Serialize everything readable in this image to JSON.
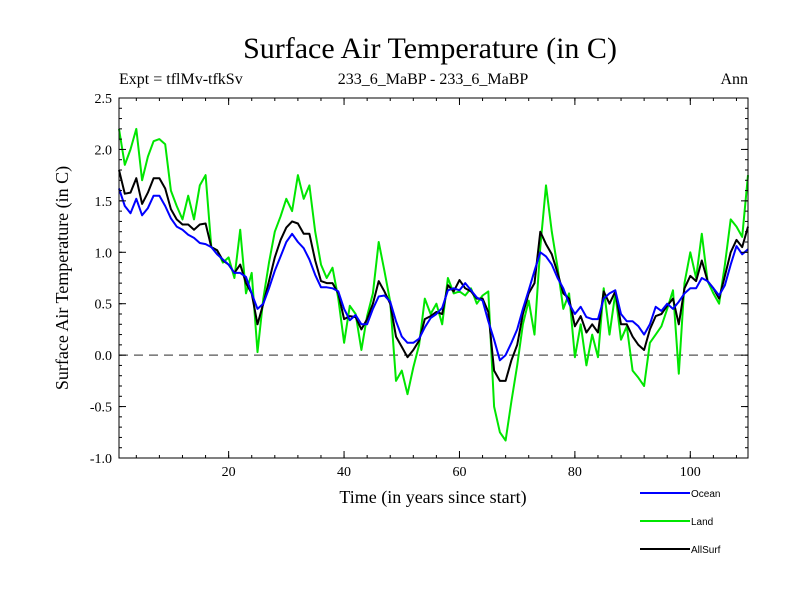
{
  "chart_data": {
    "type": "line",
    "title": "Surface Air Temperature (in C)",
    "subtitle_left": "Expt = tflMv-tfkSv",
    "subtitle_center": "233_6_MaBP - 233_6_MaBP",
    "subtitle_right": "Ann",
    "xlabel": "Time (in years since start)",
    "ylabel": "Surface Air Temperature (in C)",
    "xlim": [
      1,
      110
    ],
    "ylim": [
      -1.0,
      2.5
    ],
    "xticks": [
      20,
      40,
      60,
      80,
      100
    ],
    "xtick_labels": [
      "20",
      "40",
      "60",
      "80",
      "100"
    ],
    "yticks": [
      -1.0,
      -0.5,
      0.0,
      0.5,
      1.0,
      1.5,
      2.0,
      2.5
    ],
    "ytick_labels": [
      "-1.0",
      "-0.5",
      "0.0",
      "0.5",
      "1.0",
      "1.5",
      "2.0",
      "2.5"
    ],
    "reference_line": {
      "y": 0.0,
      "style": "dashed"
    },
    "x": [
      1,
      2,
      3,
      4,
      5,
      6,
      7,
      8,
      9,
      10,
      11,
      12,
      13,
      14,
      15,
      16,
      17,
      18,
      19,
      20,
      21,
      22,
      23,
      24,
      25,
      26,
      27,
      28,
      29,
      30,
      31,
      32,
      33,
      34,
      35,
      36,
      37,
      38,
      39,
      40,
      41,
      42,
      43,
      44,
      45,
      46,
      47,
      48,
      49,
      50,
      51,
      52,
      53,
      54,
      55,
      56,
      57,
      58,
      59,
      60,
      61,
      62,
      63,
      64,
      65,
      66,
      67,
      68,
      69,
      70,
      71,
      72,
      73,
      74,
      75,
      76,
      77,
      78,
      79,
      80,
      81,
      82,
      83,
      84,
      85,
      86,
      87,
      88,
      89,
      90,
      91,
      92,
      93,
      94,
      95,
      96,
      97,
      98,
      99,
      100,
      101,
      102,
      103,
      104,
      105,
      106,
      107,
      108,
      109,
      110
    ],
    "series": [
      {
        "name": "Ocean",
        "color": "#0000ff",
        "values": [
          1.62,
          1.45,
          1.38,
          1.52,
          1.36,
          1.43,
          1.55,
          1.55,
          1.45,
          1.33,
          1.25,
          1.22,
          1.17,
          1.14,
          1.09,
          1.08,
          1.05,
          0.98,
          0.93,
          0.88,
          0.8,
          0.8,
          0.76,
          0.6,
          0.45,
          0.5,
          0.65,
          0.82,
          0.96,
          1.1,
          1.18,
          1.1,
          1.04,
          0.93,
          0.78,
          0.66,
          0.66,
          0.65,
          0.62,
          0.45,
          0.34,
          0.39,
          0.3,
          0.3,
          0.45,
          0.57,
          0.58,
          0.52,
          0.33,
          0.18,
          0.12,
          0.12,
          0.16,
          0.27,
          0.36,
          0.4,
          0.46,
          0.63,
          0.65,
          0.63,
          0.7,
          0.63,
          0.56,
          0.53,
          0.33,
          0.15,
          -0.05,
          0.0,
          0.12,
          0.25,
          0.45,
          0.63,
          0.82,
          1.0,
          0.96,
          0.88,
          0.75,
          0.65,
          0.5,
          0.4,
          0.47,
          0.37,
          0.35,
          0.35,
          0.55,
          0.6,
          0.63,
          0.4,
          0.33,
          0.33,
          0.28,
          0.2,
          0.3,
          0.47,
          0.43,
          0.5,
          0.45,
          0.52,
          0.6,
          0.65,
          0.65,
          0.75,
          0.72,
          0.65,
          0.58,
          0.68,
          0.88,
          1.06,
          0.98,
          1.03
        ]
      },
      {
        "name": "Land",
        "color": "#00e600",
        "values": [
          2.2,
          1.85,
          2.0,
          2.2,
          1.7,
          1.93,
          2.08,
          2.1,
          2.05,
          1.6,
          1.45,
          1.32,
          1.55,
          1.32,
          1.65,
          1.75,
          1.05,
          1.02,
          0.9,
          0.95,
          0.75,
          1.22,
          0.6,
          0.8,
          0.03,
          0.55,
          0.9,
          1.2,
          1.35,
          1.52,
          1.4,
          1.75,
          1.52,
          1.65,
          1.2,
          0.88,
          0.75,
          0.85,
          0.55,
          0.12,
          0.48,
          0.4,
          0.05,
          0.38,
          0.6,
          1.1,
          0.82,
          0.52,
          -0.25,
          -0.15,
          -0.38,
          -0.12,
          0.1,
          0.55,
          0.4,
          0.5,
          0.3,
          0.75,
          0.6,
          0.62,
          0.58,
          0.65,
          0.5,
          0.58,
          0.62,
          -0.5,
          -0.75,
          -0.83,
          -0.45,
          -0.1,
          0.3,
          0.53,
          0.2,
          1.05,
          1.65,
          1.2,
          0.85,
          0.45,
          0.6,
          -0.02,
          0.3,
          -0.1,
          0.2,
          -0.02,
          0.65,
          0.2,
          0.6,
          0.15,
          0.28,
          -0.15,
          -0.22,
          -0.3,
          0.12,
          0.2,
          0.28,
          0.45,
          0.63,
          -0.18,
          0.7,
          1.0,
          0.75,
          1.18,
          0.72,
          0.6,
          0.5,
          0.88,
          1.32,
          1.25,
          1.15,
          1.75
        ]
      },
      {
        "name": "AllSurf",
        "color": "#000000",
        "values": [
          1.8,
          1.57,
          1.58,
          1.72,
          1.47,
          1.58,
          1.72,
          1.72,
          1.62,
          1.42,
          1.32,
          1.27,
          1.27,
          1.22,
          1.27,
          1.28,
          1.05,
          1.02,
          0.92,
          0.88,
          0.8,
          0.88,
          0.7,
          0.6,
          0.3,
          0.5,
          0.72,
          0.95,
          1.12,
          1.24,
          1.3,
          1.28,
          1.18,
          1.18,
          0.92,
          0.72,
          0.7,
          0.7,
          0.6,
          0.35,
          0.38,
          0.37,
          0.25,
          0.35,
          0.5,
          0.72,
          0.62,
          0.5,
          0.18,
          0.08,
          -0.02,
          0.05,
          0.14,
          0.35,
          0.38,
          0.42,
          0.4,
          0.68,
          0.62,
          0.73,
          0.65,
          0.62,
          0.55,
          0.55,
          0.42,
          -0.15,
          -0.25,
          -0.25,
          -0.05,
          0.1,
          0.4,
          0.6,
          0.7,
          1.2,
          1.08,
          0.98,
          0.8,
          0.6,
          0.55,
          0.28,
          0.38,
          0.22,
          0.3,
          0.22,
          0.62,
          0.5,
          0.62,
          0.3,
          0.3,
          0.18,
          0.1,
          0.05,
          0.25,
          0.38,
          0.4,
          0.48,
          0.55,
          0.3,
          0.65,
          0.77,
          0.72,
          0.92,
          0.72,
          0.65,
          0.55,
          0.77,
          1.0,
          1.12,
          1.05,
          1.25
        ]
      }
    ],
    "legend": [
      {
        "label": "Ocean",
        "color": "#0000ff"
      },
      {
        "label": "Land",
        "color": "#00e600"
      },
      {
        "label": "AllSurf",
        "color": "#000000"
      }
    ],
    "legend_position": "bottom-right",
    "grid": false
  }
}
